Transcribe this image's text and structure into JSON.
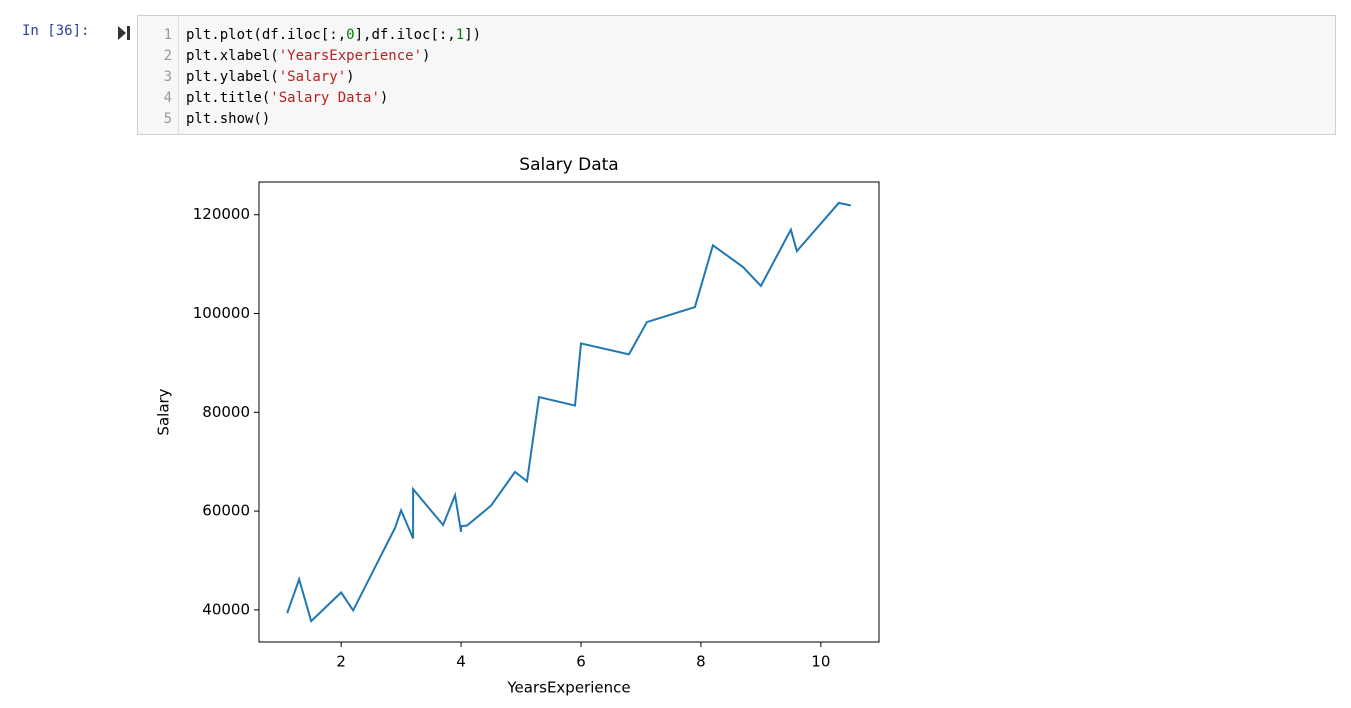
{
  "prompt": "In [36]:",
  "line_numbers": [
    1,
    2,
    3,
    4,
    5
  ],
  "code": [
    [
      "plt.plot(df.iloc[:,",
      "0",
      "],df.iloc[:,",
      "1",
      "])"
    ],
    [
      "plt.xlabel(",
      "'YearsExperience'",
      ")"
    ],
    [
      "plt.ylabel(",
      "'Salary'",
      ")"
    ],
    [
      "plt.title(",
      "'Salary Data'",
      ")"
    ],
    [
      "plt.show()"
    ]
  ],
  "chart_data": {
    "type": "line",
    "title": "Salary Data",
    "x_label": "YearsExperience",
    "y_label": "Salary",
    "color": "#1f77b4",
    "x": [
      1.1,
      1.3,
      1.5,
      2.0,
      2.2,
      2.9,
      3.0,
      3.2,
      3.2,
      3.7,
      3.9,
      4.0,
      4.0,
      4.1,
      4.5,
      4.9,
      5.1,
      5.3,
      5.9,
      6.0,
      6.8,
      7.1,
      7.9,
      8.2,
      8.7,
      9.0,
      9.5,
      9.6,
      10.3,
      10.5
    ],
    "values": [
      39343,
      46205,
      37731,
      43525,
      39891,
      56642,
      60150,
      54445,
      64445,
      57189,
      63218,
      55794,
      56957,
      57081,
      61111,
      67938,
      66029,
      83088,
      81363,
      93940,
      91738,
      98273,
      101302,
      113812,
      109431,
      105582,
      116969,
      112635,
      122391,
      121872
    ],
    "xlim": [
      0.63,
      10.97
    ],
    "ylim": [
      33498,
      126624
    ],
    "xticks": [
      2,
      4,
      6,
      8,
      10
    ],
    "yticks": [
      40000,
      60000,
      80000,
      100000,
      120000
    ]
  }
}
